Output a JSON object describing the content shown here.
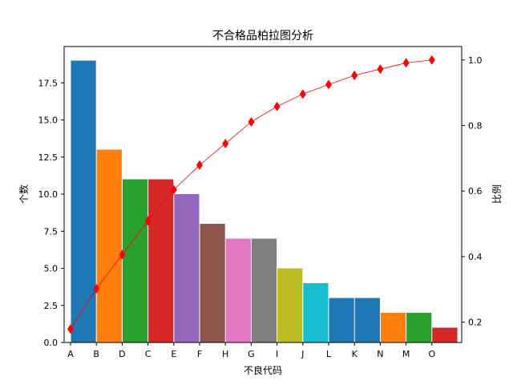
{
  "chart_data": {
    "type": "bar",
    "title": "不合格品柏拉图分析",
    "xlabel": "不良代码",
    "ylabel": "个数",
    "y2label": "比例",
    "categories": [
      "A",
      "B",
      "D",
      "C",
      "E",
      "F",
      "H",
      "G",
      "I",
      "J",
      "L",
      "K",
      "N",
      "M",
      "O"
    ],
    "values": [
      19,
      13,
      11,
      11,
      10,
      8,
      7,
      7,
      5,
      4,
      3,
      3,
      2,
      2,
      1
    ],
    "bar_colors": [
      "#1f77b4",
      "#ff7f0e",
      "#2ca02c",
      "#d62728",
      "#9467bd",
      "#8c564b",
      "#e377c2",
      "#7f7f7f",
      "#bcbd22",
      "#17becf",
      "#1f77b4",
      "#1f77b4",
      "#ff7f0e",
      "#2ca02c",
      "#d62728"
    ],
    "cumulative_ratio": [
      0.179,
      0.302,
      0.406,
      0.509,
      0.604,
      0.679,
      0.745,
      0.811,
      0.858,
      0.896,
      0.925,
      0.953,
      0.972,
      0.991,
      1.0
    ],
    "line_color": "#ff0000",
    "ylim": [
      0,
      19.95
    ],
    "y2lim": [
      0.138,
      1.041
    ],
    "yticks": [
      "0.0",
      "2.5",
      "5.0",
      "7.5",
      "10.0",
      "12.5",
      "15.0",
      "17.5"
    ],
    "y2ticks": [
      "0.2",
      "0.4",
      "0.6",
      "0.8",
      "1.0"
    ],
    "grid": false,
    "legend": "none"
  }
}
